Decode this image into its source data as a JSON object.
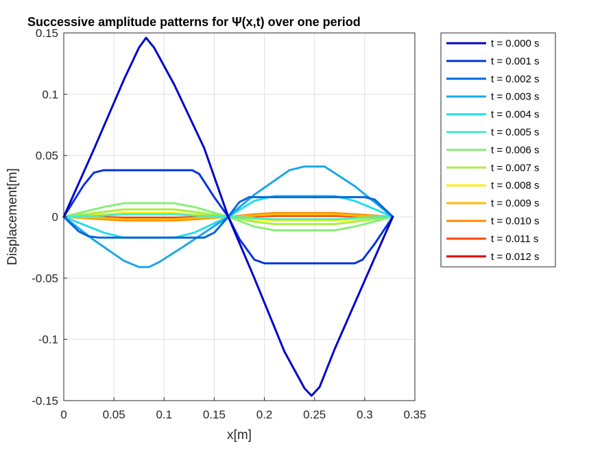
{
  "chart_data": {
    "type": "line",
    "title": "Successive amplitude patterns for Ψ(x,t) over one period",
    "xlabel": "x[m]",
    "ylabel": "Displacement[m]",
    "xlim": [
      0,
      0.35
    ],
    "ylim": [
      -0.15,
      0.15
    ],
    "xticks": [
      0,
      0.05,
      0.1,
      0.15,
      0.2,
      0.25,
      0.3,
      0.35
    ],
    "xtick_labels": [
      "0",
      "0.05",
      "0.1",
      "0.15",
      "0.2",
      "0.25",
      "0.3",
      "0.35"
    ],
    "yticks": [
      -0.15,
      -0.1,
      -0.05,
      0,
      0.05,
      0.1,
      0.15
    ],
    "ytick_labels": [
      "-0.15",
      "-0.1",
      "-0.05",
      "0",
      "0.05",
      "0.1",
      "0.15"
    ],
    "grid": true,
    "legend_position": "outside-right-top",
    "series": [
      {
        "name": "t = 0.000 s",
        "color": "#0000cc",
        "x": [
          0,
          0.03,
          0.06,
          0.075,
          0.082,
          0.09,
          0.11,
          0.14,
          0.164,
          0.19,
          0.22,
          0.24,
          0.247,
          0.255,
          0.27,
          0.3,
          0.328
        ],
        "y": [
          0,
          0.055,
          0.112,
          0.138,
          0.146,
          0.138,
          0.108,
          0.056,
          0,
          -0.05,
          -0.11,
          -0.14,
          -0.146,
          -0.139,
          -0.108,
          -0.052,
          0
        ]
      },
      {
        "name": "t = 0.001 s",
        "color": "#0033dd",
        "x": [
          0,
          0.02,
          0.03,
          0.04,
          0.08,
          0.12,
          0.128,
          0.135,
          0.15,
          0.164,
          0.175,
          0.19,
          0.2,
          0.24,
          0.29,
          0.298,
          0.31,
          0.328
        ],
        "y": [
          0,
          0.026,
          0.036,
          0.038,
          0.038,
          0.038,
          0.038,
          0.035,
          0.016,
          0,
          -0.018,
          -0.035,
          -0.038,
          -0.038,
          -0.038,
          -0.035,
          -0.022,
          0
        ]
      },
      {
        "name": "t = 0.002 s",
        "color": "#0066dd",
        "x": [
          0,
          0.015,
          0.025,
          0.035,
          0.1,
          0.14,
          0.15,
          0.164,
          0.175,
          0.185,
          0.3,
          0.31,
          0.328
        ],
        "y": [
          0,
          -0.012,
          -0.016,
          -0.017,
          -0.017,
          -0.017,
          -0.013,
          0,
          0.012,
          0.016,
          0.016,
          0.014,
          0
        ]
      },
      {
        "name": "t = 0.003 s",
        "color": "#1aa8e6",
        "x": [
          0,
          0.03,
          0.06,
          0.075,
          0.085,
          0.095,
          0.12,
          0.164,
          0.19,
          0.225,
          0.24,
          0.26,
          0.29,
          0.328
        ],
        "y": [
          0,
          -0.019,
          -0.036,
          -0.041,
          -0.041,
          -0.037,
          -0.024,
          0,
          0.018,
          0.038,
          0.041,
          0.041,
          0.025,
          0
        ]
      },
      {
        "name": "t = 0.004 s",
        "color": "#22ddee",
        "x": [
          0,
          0.04,
          0.06,
          0.11,
          0.13,
          0.164,
          0.19,
          0.21,
          0.27,
          0.29,
          0.328
        ],
        "y": [
          0,
          -0.013,
          -0.017,
          -0.017,
          -0.013,
          0,
          0.013,
          0.017,
          0.017,
          0.013,
          0
        ]
      },
      {
        "name": "t = 0.005 s",
        "color": "#44eecc",
        "x": [
          0,
          0.04,
          0.06,
          0.11,
          0.13,
          0.164,
          0.19,
          0.21,
          0.27,
          0.29,
          0.328
        ],
        "y": [
          0,
          0.001,
          0.002,
          0.002,
          0.001,
          0,
          -0.001,
          -0.002,
          -0.002,
          -0.001,
          0
        ]
      },
      {
        "name": "t = 0.006 s",
        "color": "#88ee77",
        "x": [
          0,
          0.04,
          0.06,
          0.11,
          0.13,
          0.164,
          0.19,
          0.21,
          0.27,
          0.29,
          0.328
        ],
        "y": [
          0,
          0.008,
          0.011,
          0.011,
          0.008,
          0,
          -0.008,
          -0.011,
          -0.011,
          -0.008,
          0
        ]
      },
      {
        "name": "t = 0.007 s",
        "color": "#aaee44",
        "x": [
          0,
          0.04,
          0.06,
          0.11,
          0.13,
          0.164,
          0.19,
          0.21,
          0.27,
          0.29,
          0.328
        ],
        "y": [
          0,
          0.004,
          0.006,
          0.006,
          0.004,
          0,
          -0.004,
          -0.006,
          -0.006,
          -0.004,
          0
        ]
      },
      {
        "name": "t = 0.008 s",
        "color": "#ffee00",
        "x": [
          0,
          0.04,
          0.06,
          0.11,
          0.13,
          0.164,
          0.19,
          0.21,
          0.27,
          0.29,
          0.328
        ],
        "y": [
          0,
          0.002,
          0.003,
          0.003,
          0.002,
          0,
          -0.002,
          -0.003,
          -0.003,
          -0.002,
          0
        ]
      },
      {
        "name": "t = 0.009 s",
        "color": "#ffbb00",
        "x": [
          0,
          0.04,
          0.06,
          0.11,
          0.13,
          0.164,
          0.19,
          0.21,
          0.27,
          0.29,
          0.328
        ],
        "y": [
          0,
          -0.001,
          -0.002,
          -0.002,
          -0.001,
          0,
          0.001,
          0.002,
          0.002,
          0.001,
          0
        ]
      },
      {
        "name": "t = 0.010 s",
        "color": "#ff8800",
        "x": [
          0,
          0.04,
          0.06,
          0.11,
          0.13,
          0.164,
          0.19,
          0.21,
          0.27,
          0.29,
          0.328
        ],
        "y": [
          0,
          -0.002,
          -0.003,
          -0.003,
          -0.002,
          0,
          0.002,
          0.003,
          0.003,
          0.002,
          0
        ]
      },
      {
        "name": "t = 0.011 s",
        "color": "#ff4400",
        "x": [
          0,
          0.04,
          0.06,
          0.11,
          0.13,
          0.164,
          0.19,
          0.21,
          0.27,
          0.29,
          0.328
        ],
        "y": [
          0,
          -0.001,
          -0.001,
          -0.001,
          -0.001,
          0,
          0.001,
          0.001,
          0.001,
          0.001,
          0
        ]
      },
      {
        "name": "t = 0.012 s",
        "color": "#dd0000",
        "x": [
          0,
          0.04,
          0.06,
          0.11,
          0.13,
          0.164,
          0.19,
          0.21,
          0.27,
          0.29,
          0.328
        ],
        "y": [
          0,
          -0.0005,
          -0.0008,
          -0.0008,
          -0.0005,
          0,
          0.0005,
          0.0008,
          0.0008,
          0.0005,
          0
        ]
      }
    ]
  }
}
